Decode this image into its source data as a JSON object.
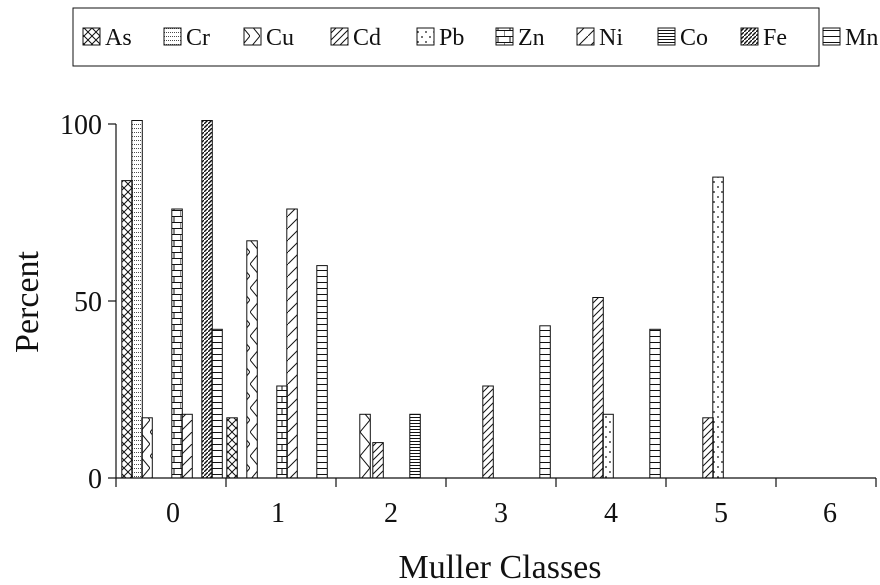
{
  "chart_data": {
    "type": "bar",
    "title": "",
    "xlabel": "Muller Classes",
    "ylabel": "Percent",
    "categories": [
      "0",
      "1",
      "2",
      "3",
      "4",
      "5",
      "6"
    ],
    "y_ticks": [
      "0",
      "50",
      "100"
    ],
    "ylim": [
      0,
      100
    ],
    "grid": false,
    "legend_position": "top",
    "series": [
      {
        "name": "As",
        "pattern": "crosshatch",
        "values": [
          84,
          17,
          0,
          0,
          0,
          0,
          0
        ]
      },
      {
        "name": "Cr",
        "pattern": "dots-grid",
        "values": [
          101,
          0,
          0,
          0,
          0,
          0,
          0
        ]
      },
      {
        "name": "Cu",
        "pattern": "zigzag",
        "values": [
          17,
          67,
          18,
          0,
          0,
          0,
          0
        ]
      },
      {
        "name": "Cd",
        "pattern": "diagonal",
        "values": [
          0,
          0,
          10,
          26,
          51,
          17,
          0
        ]
      },
      {
        "name": "Pb",
        "pattern": "dots",
        "values": [
          0,
          0,
          0,
          0,
          18,
          85,
          0
        ]
      },
      {
        "name": "Zn",
        "pattern": "brick",
        "values": [
          76,
          26,
          0,
          0,
          0,
          0,
          0
        ]
      },
      {
        "name": "Ni",
        "pattern": "diagonal-sparse",
        "values": [
          18,
          76,
          0,
          0,
          0,
          0,
          0
        ]
      },
      {
        "name": "Co",
        "pattern": "dense-horizontal",
        "values": [
          0,
          0,
          18,
          0,
          0,
          0,
          0
        ]
      },
      {
        "name": "Fe",
        "pattern": "dense-diagonal",
        "values": [
          101,
          0,
          0,
          0,
          0,
          0,
          0
        ]
      },
      {
        "name": "Mn",
        "pattern": "horizontal",
        "values": [
          42,
          60,
          0,
          43,
          42,
          0,
          0
        ]
      }
    ]
  }
}
